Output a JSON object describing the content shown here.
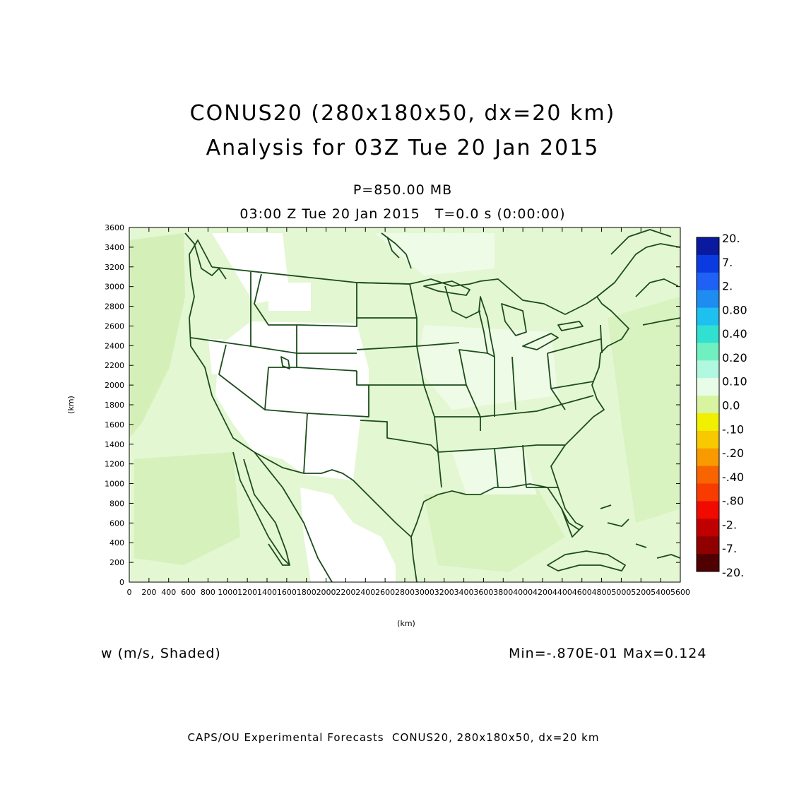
{
  "titles": {
    "line1": "CONUS20 (280x180x50, dx=20 km)",
    "line2": "Analysis for 03Z Tue 20 Jan 2015",
    "level": "P=850.00 MB",
    "time": "03:00 Z Tue 20 Jan 2015   T=0.0 s (0:00:00)"
  },
  "field": {
    "label": "w (m/s, Shaded)",
    "minmax": "Min=-.870E-01 Max=0.124"
  },
  "footer": "CAPS/OU Experimental Forecasts  CONUS20, 280x180x50, dx=20 km",
  "axes": {
    "x_label": "(km)",
    "y_label": "(km)",
    "x_range": [
      0,
      5600
    ],
    "y_range": [
      0,
      3600
    ],
    "x_ticks": [
      "0",
      "200",
      "400",
      "600",
      "800",
      "1000",
      "1200",
      "1400",
      "1600",
      "1800",
      "2000",
      "2200",
      "2400",
      "2600",
      "2800",
      "3000",
      "3200",
      "3400",
      "3600",
      "3800",
      "4000",
      "4200",
      "4400",
      "4600",
      "4800",
      "5000",
      "5200",
      "5400",
      "5600"
    ],
    "y_ticks": [
      "0",
      "200",
      "400",
      "600",
      "800",
      "1000",
      "1200",
      "1400",
      "1600",
      "1800",
      "2000",
      "2200",
      "2400",
      "2600",
      "2800",
      "3000",
      "3200",
      "3400",
      "3600"
    ]
  },
  "colorbar": {
    "labels": [
      "20.",
      "7.",
      "2.",
      "0.80",
      "0.40",
      "0.20",
      "0.10",
      "0.0",
      "-.10",
      "-.20",
      "-.40",
      "-.80",
      "-2.",
      "-7.",
      "-20."
    ],
    "colors": [
      "#0a1a9e",
      "#0a3ae0",
      "#1f60f5",
      "#1e8cf0",
      "#1ec0f0",
      "#30e0d0",
      "#70f0c0",
      "#b0f8e0",
      "#e8fce8",
      "#d8f4a0",
      "#f0f000",
      "#f8c800",
      "#f89a00",
      "#f86400",
      "#f83c00",
      "#f00a00",
      "#c00000",
      "#900000",
      "#500000"
    ]
  },
  "map_colors": {
    "background": "#e3f7d2",
    "light_shade": "#ccecaa",
    "white_shade": "#ffffff",
    "coastline": "#1c4c1c"
  }
}
